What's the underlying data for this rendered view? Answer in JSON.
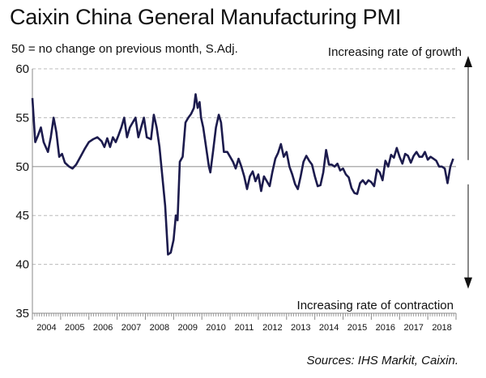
{
  "title": "Caixin China General Manufacturing PMI",
  "subtitle": "50 = no change on previous month, S.Adj.",
  "annotations": {
    "growth": "Increasing rate of growth",
    "contraction": "Increasing rate of contraction"
  },
  "source": "Sources: IHS Markit, Caixin.",
  "colors": {
    "line": "#1c1b4d",
    "axis": "#888888",
    "grid": "#bbbbbb",
    "baseline": "#999999",
    "arrow": "#111111"
  },
  "chart_data": {
    "type": "line",
    "title": "Caixin China General Manufacturing PMI",
    "ylim": [
      35,
      60
    ],
    "yticks": [
      35,
      40,
      45,
      50,
      55,
      60
    ],
    "xticks": [
      "2004",
      "2005",
      "2006",
      "2007",
      "2008",
      "2009",
      "2010",
      "2011",
      "2012",
      "2013",
      "2014",
      "2015",
      "2016",
      "2017",
      "2018"
    ],
    "x_range": [
      2004,
      2019
    ],
    "grid": "horizontal dashed",
    "reference_line": 50,
    "series": [
      {
        "points": [
          [
            2004.0,
            57.0
          ],
          [
            2004.1,
            52.5
          ],
          [
            2004.2,
            53.2
          ],
          [
            2004.3,
            54.0
          ],
          [
            2004.4,
            52.5
          ],
          [
            2004.55,
            51.5
          ],
          [
            2004.65,
            53.0
          ],
          [
            2004.75,
            55.0
          ],
          [
            2004.85,
            53.5
          ],
          [
            2004.95,
            51.0
          ],
          [
            2005.05,
            51.3
          ],
          [
            2005.15,
            50.4
          ],
          [
            2005.3,
            50.0
          ],
          [
            2005.42,
            49.8
          ],
          [
            2005.55,
            50.2
          ],
          [
            2005.7,
            51.0
          ],
          [
            2005.85,
            51.8
          ],
          [
            2006.0,
            52.5
          ],
          [
            2006.15,
            52.8
          ],
          [
            2006.3,
            53.0
          ],
          [
            2006.45,
            52.6
          ],
          [
            2006.55,
            52.0
          ],
          [
            2006.65,
            52.9
          ],
          [
            2006.75,
            52.0
          ],
          [
            2006.85,
            53.0
          ],
          [
            2006.95,
            52.5
          ],
          [
            2007.05,
            53.2
          ],
          [
            2007.15,
            54.0
          ],
          [
            2007.25,
            55.0
          ],
          [
            2007.35,
            53.0
          ],
          [
            2007.45,
            54.0
          ],
          [
            2007.55,
            54.5
          ],
          [
            2007.65,
            55.0
          ],
          [
            2007.75,
            53.0
          ],
          [
            2007.85,
            54.0
          ],
          [
            2007.95,
            55.0
          ],
          [
            2008.05,
            53.0
          ],
          [
            2008.2,
            52.8
          ],
          [
            2008.3,
            55.3
          ],
          [
            2008.4,
            54.0
          ],
          [
            2008.5,
            52.0
          ],
          [
            2008.6,
            49.0
          ],
          [
            2008.7,
            46.0
          ],
          [
            2008.8,
            41.0
          ],
          [
            2008.9,
            41.2
          ],
          [
            2009.0,
            42.5
          ],
          [
            2009.08,
            45.0
          ],
          [
            2009.14,
            44.5
          ],
          [
            2009.22,
            50.5
          ],
          [
            2009.32,
            51.0
          ],
          [
            2009.42,
            54.5
          ],
          [
            2009.52,
            55.0
          ],
          [
            2009.62,
            55.4
          ],
          [
            2009.72,
            56.0
          ],
          [
            2009.78,
            57.4
          ],
          [
            2009.85,
            56.0
          ],
          [
            2009.92,
            56.6
          ],
          [
            2009.97,
            55.0
          ],
          [
            2010.05,
            54.0
          ],
          [
            2010.15,
            52.0
          ],
          [
            2010.25,
            50.0
          ],
          [
            2010.3,
            49.4
          ],
          [
            2010.4,
            51.6
          ],
          [
            2010.5,
            54.0
          ],
          [
            2010.6,
            55.3
          ],
          [
            2010.68,
            54.5
          ],
          [
            2010.78,
            51.5
          ],
          [
            2010.9,
            51.5
          ],
          [
            2011.0,
            51.0
          ],
          [
            2011.1,
            50.5
          ],
          [
            2011.2,
            49.8
          ],
          [
            2011.3,
            50.8
          ],
          [
            2011.4,
            50.0
          ],
          [
            2011.5,
            49.0
          ],
          [
            2011.6,
            47.7
          ],
          [
            2011.7,
            49.0
          ],
          [
            2011.8,
            49.5
          ],
          [
            2011.9,
            48.5
          ],
          [
            2012.0,
            49.2
          ],
          [
            2012.1,
            47.5
          ],
          [
            2012.2,
            49.0
          ],
          [
            2012.3,
            48.5
          ],
          [
            2012.4,
            48.0
          ],
          [
            2012.5,
            49.5
          ],
          [
            2012.6,
            50.8
          ],
          [
            2012.7,
            51.4
          ],
          [
            2012.8,
            52.3
          ],
          [
            2012.9,
            51.0
          ],
          [
            2013.0,
            51.5
          ],
          [
            2013.1,
            50.0
          ],
          [
            2013.2,
            49.2
          ],
          [
            2013.3,
            48.2
          ],
          [
            2013.4,
            47.7
          ],
          [
            2013.5,
            49.0
          ],
          [
            2013.6,
            50.5
          ],
          [
            2013.7,
            51.1
          ],
          [
            2013.8,
            50.6
          ],
          [
            2013.9,
            50.2
          ],
          [
            2014.0,
            49.0
          ],
          [
            2014.1,
            48.0
          ],
          [
            2014.2,
            48.1
          ],
          [
            2014.3,
            49.4
          ],
          [
            2014.4,
            51.7
          ],
          [
            2014.5,
            50.2
          ],
          [
            2014.6,
            50.2
          ],
          [
            2014.7,
            50.0
          ],
          [
            2014.8,
            50.3
          ],
          [
            2014.9,
            49.6
          ],
          [
            2015.0,
            49.8
          ],
          [
            2015.1,
            49.2
          ],
          [
            2015.2,
            48.9
          ],
          [
            2015.3,
            47.8
          ],
          [
            2015.4,
            47.3
          ],
          [
            2015.5,
            47.2
          ],
          [
            2015.6,
            48.3
          ],
          [
            2015.7,
            48.6
          ],
          [
            2015.8,
            48.2
          ],
          [
            2015.9,
            48.6
          ],
          [
            2016.0,
            48.4
          ],
          [
            2016.1,
            48.0
          ],
          [
            2016.2,
            49.7
          ],
          [
            2016.3,
            49.4
          ],
          [
            2016.4,
            48.6
          ],
          [
            2016.5,
            50.6
          ],
          [
            2016.6,
            50.0
          ],
          [
            2016.7,
            51.2
          ],
          [
            2016.8,
            50.9
          ],
          [
            2016.9,
            51.9
          ],
          [
            2017.0,
            51.0
          ],
          [
            2017.1,
            50.3
          ],
          [
            2017.2,
            51.3
          ],
          [
            2017.3,
            51.1
          ],
          [
            2017.4,
            50.4
          ],
          [
            2017.5,
            51.1
          ],
          [
            2017.6,
            51.5
          ],
          [
            2017.7,
            51.0
          ],
          [
            2017.8,
            51.0
          ],
          [
            2017.9,
            51.5
          ],
          [
            2018.0,
            50.7
          ],
          [
            2018.1,
            51.0
          ],
          [
            2018.2,
            50.8
          ],
          [
            2018.3,
            50.6
          ],
          [
            2018.4,
            50.0
          ],
          [
            2018.5,
            50.0
          ],
          [
            2018.6,
            49.8
          ],
          [
            2018.7,
            48.3
          ],
          [
            2018.8,
            50.0
          ],
          [
            2018.9,
            50.8
          ]
        ]
      }
    ]
  }
}
